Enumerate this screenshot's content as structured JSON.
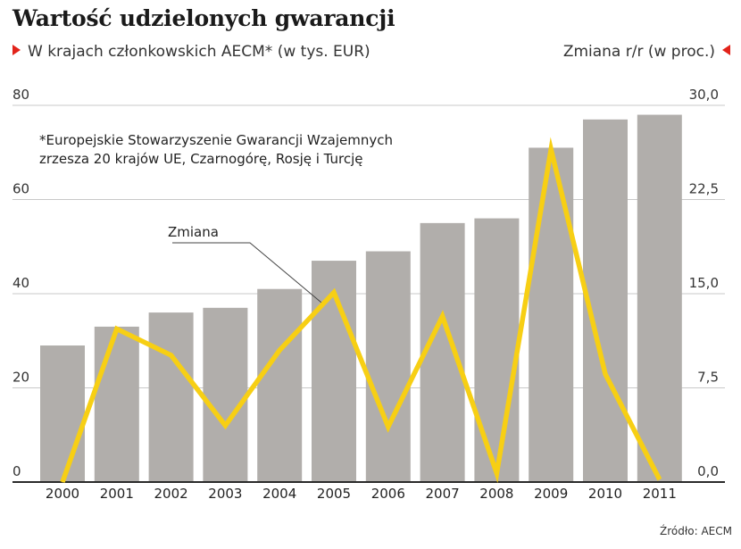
{
  "title": "Wartość udzielonych gwarancji",
  "subtitle_left": "W krajach członkowskich AECM* (w tys. EUR)",
  "subtitle_right": "Zmiana r/r (w proc.)",
  "footnote_line1": "*Europejskie Stowarzyszenie Gwarancji Wzajemnych",
  "footnote_line2": "zrzesza 20 krajów UE, Czarnogórę, Rosję i Turcję",
  "source": "Źródło: AECM",
  "colors": {
    "bar": "#b1aeab",
    "line": "#f7cf14",
    "accent": "#e2231a",
    "grid": "#c8c8c8"
  },
  "chart_data": {
    "type": "bar",
    "categories": [
      "2000",
      "2001",
      "2002",
      "2003",
      "2004",
      "2005",
      "2006",
      "2007",
      "2008",
      "2009",
      "2010",
      "2011"
    ],
    "series": [
      {
        "type": "bar",
        "axis": "left",
        "values": [
          29,
          33,
          36,
          37,
          41,
          47,
          49,
          55,
          56,
          71,
          77,
          78
        ]
      },
      {
        "type": "line",
        "axis": "right",
        "name": "Zmiana",
        "values": [
          0,
          12.2,
          10.1,
          4.5,
          10.5,
          15.1,
          4.4,
          13.2,
          0.7,
          26.5,
          8.6,
          0.2
        ]
      }
    ],
    "left_axis": {
      "ylim": [
        0,
        80
      ],
      "ticks": [
        "0",
        "20",
        "40",
        "60",
        "80"
      ]
    },
    "right_axis": {
      "ylim": [
        0,
        30
      ],
      "ticks": [
        "0,0",
        "7,5",
        "15,0",
        "22,5",
        "30,0"
      ]
    },
    "grid": true,
    "annotation": "Zmiana"
  }
}
